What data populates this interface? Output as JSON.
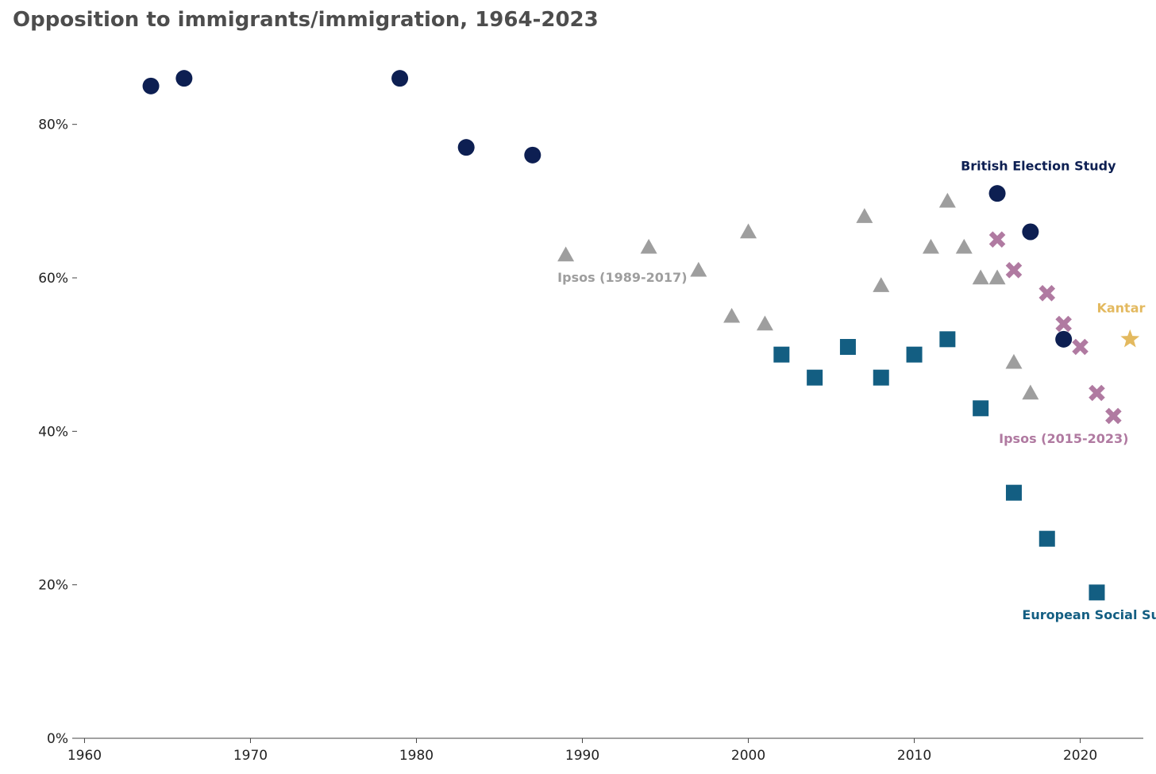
{
  "chart_data": {
    "type": "scatter",
    "title": "Opposition to immigrants/immigration, 1964-2023",
    "xlabel": "",
    "ylabel": "",
    "xlim": [
      1959.5,
      2023.8
    ],
    "ylim": [
      0,
      90
    ],
    "x_ticks": [
      1960,
      1970,
      1980,
      1990,
      2000,
      2010,
      2020
    ],
    "x_tick_labels": [
      "1960",
      "1970",
      "1980",
      "1990",
      "2000",
      "2010",
      "2020"
    ],
    "y_ticks": [
      0,
      20,
      40,
      60,
      80
    ],
    "y_tick_labels": [
      "0%",
      "20%",
      "40%",
      "60%",
      "80%"
    ],
    "grid": false,
    "legend": "inline labels",
    "series": [
      {
        "name": "British Election Study",
        "marker": "circle",
        "color": "#0d1f52",
        "x": [
          1964,
          1966,
          1979,
          1983,
          1987,
          2015,
          2017,
          2019
        ],
        "y": [
          85,
          86,
          86,
          77,
          76,
          71,
          66,
          52
        ]
      },
      {
        "name": "Ipsos (1989-2017)",
        "marker": "triangle",
        "color": "#9e9e9e",
        "x": [
          1989,
          1994,
          1997,
          1999,
          2000,
          2001,
          2007,
          2008,
          2011,
          2012,
          2013,
          2014,
          2015,
          2016,
          2017
        ],
        "y": [
          63,
          64,
          61,
          55,
          66,
          54,
          68,
          59,
          64,
          70,
          64,
          60,
          60,
          49,
          45
        ]
      },
      {
        "name": "European Social Survey",
        "marker": "square",
        "color": "#135e82",
        "x": [
          2002,
          2004,
          2006,
          2008,
          2010,
          2012,
          2014,
          2016,
          2018,
          2021
        ],
        "y": [
          50,
          47,
          51,
          47,
          50,
          52,
          43,
          32,
          26,
          19
        ]
      },
      {
        "name": "Ipsos (2015-2023)",
        "marker": "cross",
        "color": "#b07aa1",
        "x": [
          2015,
          2016,
          2018,
          2019,
          2020,
          2021,
          2022
        ],
        "y": [
          65,
          61,
          58,
          54,
          51,
          45,
          42
        ]
      },
      {
        "name": "Kantar",
        "marker": "star",
        "color": "#e3b95f",
        "x": [
          2023
        ],
        "y": [
          52
        ]
      }
    ]
  }
}
